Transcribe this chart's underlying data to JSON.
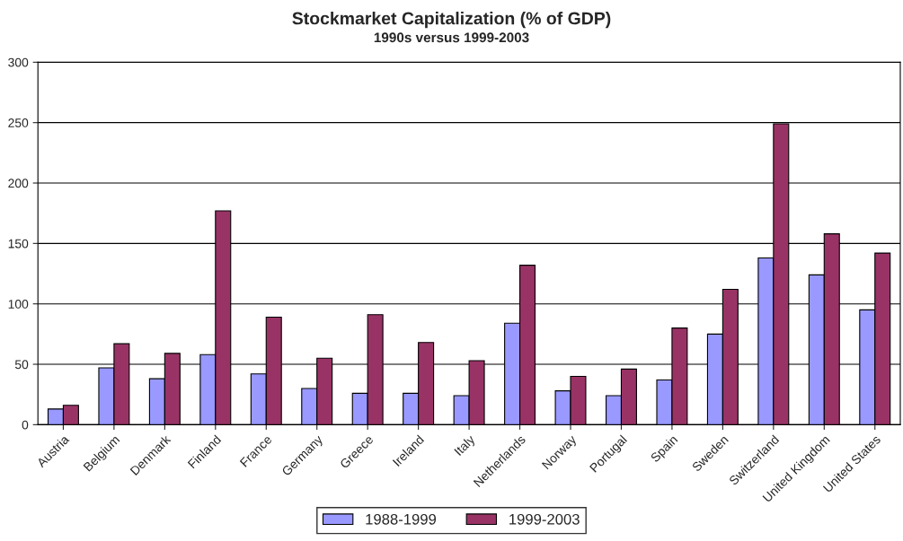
{
  "chart_data": {
    "type": "bar",
    "title": "Stockmarket Capitalization (% of GDP)",
    "subtitle": "1990s versus 1999-2003",
    "categories": [
      "Austria",
      "Belgium",
      "Denmark",
      "Finland",
      "France",
      "Germany",
      "Greece",
      "Ireland",
      "Italy",
      "Netherlands",
      "Norway",
      "Portugal",
      "Spain",
      "Sweden",
      "Switzerland",
      "United Kingdom",
      "United States"
    ],
    "series": [
      {
        "name": "1988-1999",
        "color": "#9999ff",
        "values": [
          13,
          47,
          38,
          58,
          42,
          30,
          26,
          26,
          24,
          84,
          28,
          24,
          37,
          75,
          138,
          124,
          95
        ]
      },
      {
        "name": "1999-2003",
        "color": "#993366",
        "values": [
          16,
          67,
          59,
          177,
          89,
          55,
          91,
          68,
          53,
          132,
          40,
          46,
          80,
          112,
          249,
          158,
          142
        ]
      }
    ],
    "ylim": [
      0,
      300
    ],
    "yticks": [
      0,
      50,
      100,
      150,
      200,
      250,
      300
    ],
    "grid": "y",
    "legend": "bottom"
  }
}
